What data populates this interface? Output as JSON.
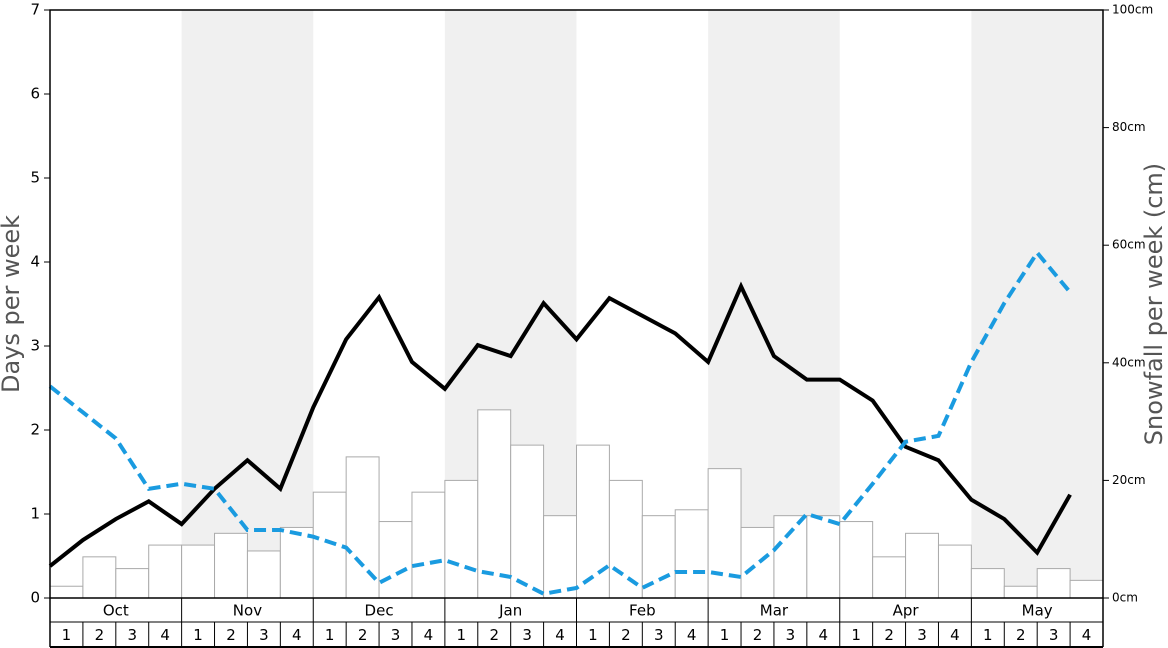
{
  "chart_data": {
    "type": "combo",
    "y_label": "Days per week",
    "y2_label": "Snowfall per week (cm)",
    "months": [
      "Oct",
      "Nov",
      "Dec",
      "Jan",
      "Feb",
      "Mar",
      "Apr",
      "May"
    ],
    "categories": [
      "1",
      "2",
      "3",
      "4",
      "1",
      "2",
      "3",
      "4",
      "1",
      "2",
      "3",
      "4",
      "1",
      "2",
      "3",
      "4",
      "1",
      "2",
      "3",
      "4",
      "1",
      "2",
      "3",
      "4",
      "1",
      "2",
      "3",
      "4",
      "1",
      "2",
      "3",
      "4"
    ],
    "ylim": [
      0,
      7
    ],
    "yticks": [
      0,
      1,
      2,
      3,
      4,
      5,
      6,
      7
    ],
    "y2lim": [
      0,
      100
    ],
    "y2ticks": [
      {
        "value": 0,
        "label": "0cm"
      },
      {
        "value": 20,
        "label": "20cm"
      },
      {
        "value": 40,
        "label": "40cm"
      },
      {
        "value": 60,
        "label": "60cm"
      },
      {
        "value": 80,
        "label": "80cm"
      },
      {
        "value": 100,
        "label": "100cm"
      }
    ],
    "shade_color": "#f0f0f0",
    "series": [
      {
        "type": "bar",
        "axis": "y2",
        "color": "#ffffff",
        "values": [
          2,
          7,
          5,
          9,
          9,
          11,
          8,
          12,
          18,
          24,
          13,
          18,
          20,
          32,
          26,
          14,
          26,
          20,
          14,
          15,
          22,
          12,
          14,
          14,
          13,
          7,
          11,
          9,
          5,
          2,
          5,
          3
        ]
      },
      {
        "type": "line",
        "axis": "y",
        "color": "#000000",
        "dashed": false,
        "values": [
          0.38,
          0.69,
          0.94,
          1.15,
          0.88,
          1.3,
          1.64,
          1.3,
          2.27,
          3.08,
          3.58,
          2.81,
          2.49,
          3.01,
          2.88,
          3.51,
          3.08,
          3.57,
          3.36,
          3.15,
          2.81,
          3.71,
          2.88,
          2.6,
          2.6,
          2.35,
          1.8,
          1.64,
          1.17,
          0.94,
          0.54,
          1.23
        ]
      },
      {
        "type": "line",
        "axis": "y",
        "color": "#1a9be0",
        "dashed": true,
        "values": [
          2.52,
          2.21,
          1.9,
          1.3,
          1.36,
          1.3,
          0.81,
          0.81,
          0.73,
          0.6,
          0.18,
          0.38,
          0.45,
          0.32,
          0.25,
          0.05,
          0.12,
          0.39,
          0.12,
          0.31,
          0.31,
          0.25,
          0.57,
          1.0,
          0.88,
          1.36,
          1.86,
          1.93,
          2.81,
          3.51,
          4.11,
          3.64
        ]
      }
    ]
  }
}
